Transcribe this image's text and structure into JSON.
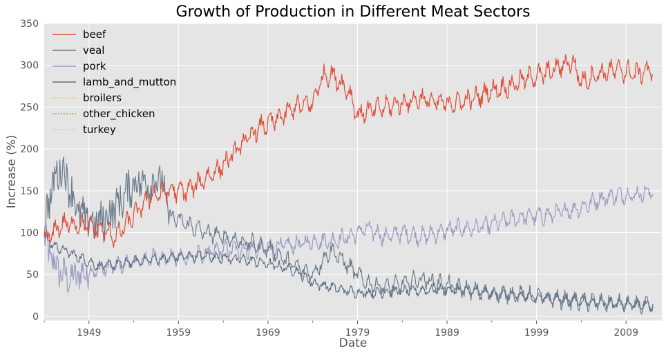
{
  "chart_data": {
    "type": "line",
    "title": "Growth of Production in Different Meat Sectors",
    "xlabel": "Date",
    "ylabel": "Increase (%)",
    "xlim": [
      1944,
      2013
    ],
    "ylim": [
      -5,
      350
    ],
    "x_ticks": [
      1949,
      1959,
      1969,
      1979,
      1989,
      1999,
      2009
    ],
    "y_ticks": [
      0,
      50,
      100,
      150,
      200,
      250,
      300,
      350
    ],
    "grid": true,
    "legend_position": "top-left",
    "colors": {
      "plot_background": "#e5e5e5",
      "grid": "#ffffff",
      "axis_text": "#555555"
    },
    "series": [
      {
        "name": "beef",
        "color": "#e24a33",
        "x": [
          1944,
          1946,
          1948,
          1950,
          1952,
          1954,
          1956,
          1958,
          1960,
          1962,
          1964,
          1966,
          1968,
          1970,
          1972,
          1974,
          1975,
          1976,
          1977,
          1978,
          1979,
          1980,
          1982,
          1984,
          1986,
          1988,
          1990,
          1992,
          1994,
          1996,
          1998,
          2000,
          2002,
          2003,
          2004,
          2006,
          2008,
          2010,
          2012
        ],
        "y": [
          90,
          110,
          110,
          105,
          95,
          120,
          145,
          150,
          150,
          165,
          180,
          205,
          225,
          235,
          250,
          255,
          285,
          290,
          280,
          270,
          240,
          245,
          250,
          255,
          260,
          255,
          255,
          260,
          270,
          275,
          285,
          290,
          300,
          305,
          280,
          290,
          295,
          290,
          295
        ],
        "amp": 12
      },
      {
        "name": "veal",
        "color": "#6b7b8c",
        "x": [
          1944,
          1945,
          1946,
          1947,
          1948,
          1950,
          1952,
          1954,
          1956,
          1957,
          1958,
          1960,
          1962,
          1964,
          1966,
          1968,
          1970,
          1972,
          1974,
          1976,
          1978,
          1980,
          1982,
          1984,
          1986,
          1988,
          1990,
          1992,
          1994,
          1996,
          1998,
          2000,
          2004,
          2008,
          2012
        ],
        "y": [
          110,
          160,
          180,
          150,
          120,
          110,
          130,
          160,
          160,
          165,
          120,
          110,
          100,
          95,
          90,
          85,
          75,
          60,
          50,
          80,
          60,
          40,
          35,
          38,
          45,
          40,
          35,
          30,
          28,
          27,
          25,
          22,
          18,
          15,
          12
        ],
        "amp": 10
      },
      {
        "name": "pork",
        "color": "#9a9cc4",
        "x": [
          1944,
          1945,
          1946,
          1947,
          1948,
          1950,
          1952,
          1954,
          1956,
          1958,
          1960,
          1962,
          1964,
          1966,
          1968,
          1970,
          1972,
          1974,
          1976,
          1978,
          1980,
          1982,
          1984,
          1986,
          1988,
          1990,
          1992,
          1994,
          1996,
          1998,
          2000,
          2002,
          2004,
          2006,
          2008,
          2010,
          2012
        ],
        "y": [
          90,
          65,
          50,
          45,
          50,
          55,
          60,
          65,
          70,
          70,
          70,
          75,
          80,
          80,
          80,
          85,
          85,
          90,
          90,
          95,
          105,
          95,
          100,
          95,
          100,
          105,
          105,
          110,
          115,
          120,
          120,
          125,
          130,
          140,
          145,
          145,
          150
        ],
        "amp": 10
      },
      {
        "name": "lamb_and_mutton",
        "color": "#5f6f84",
        "x": [
          1944,
          1945,
          1946,
          1948,
          1950,
          1952,
          1954,
          1956,
          1958,
          1960,
          1962,
          1964,
          1966,
          1968,
          1970,
          1972,
          1974,
          1976,
          1978,
          1980,
          1984,
          1988,
          1992,
          1996,
          2000,
          2004,
          2008,
          2012
        ],
        "y": [
          95,
          85,
          80,
          70,
          60,
          62,
          65,
          68,
          70,
          72,
          72,
          70,
          68,
          65,
          60,
          55,
          40,
          35,
          30,
          28,
          30,
          32,
          30,
          25,
          22,
          18,
          15,
          13
        ],
        "amp": 6
      },
      {
        "name": "broilers",
        "color": "#fbc15e",
        "x": [],
        "y": [],
        "amp": 0
      },
      {
        "name": "other_chicken",
        "color": "#8eba42",
        "x": [],
        "y": [],
        "amp": 0
      },
      {
        "name": "turkey",
        "color": "#ffb5b8",
        "x": [],
        "y": [],
        "amp": 0
      }
    ]
  }
}
